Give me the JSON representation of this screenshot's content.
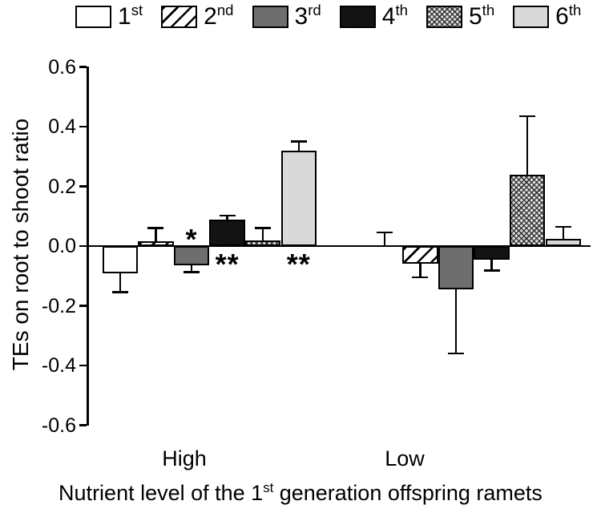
{
  "legend": {
    "items": [
      {
        "label": "1",
        "sup": "st",
        "pattern": "white"
      },
      {
        "label": "2",
        "sup": "nd",
        "pattern": "diagonal-hatch"
      },
      {
        "label": "3",
        "sup": "rd",
        "pattern": "dark-gray"
      },
      {
        "label": "4",
        "sup": "th",
        "pattern": "black"
      },
      {
        "label": "5",
        "sup": "th",
        "pattern": "crosshatch"
      },
      {
        "label": "6",
        "sup": "th",
        "pattern": "light-gray"
      }
    ]
  },
  "chart_data": {
    "type": "bar",
    "ylabel": "TEs on root to shoot ratio",
    "xlabel_parts": {
      "prefix": "Nutrient level of the 1",
      "sup": "st",
      "suffix": " generation offspring ramets"
    },
    "groups": [
      "High",
      "Low"
    ],
    "ylim": [
      -0.6,
      0.6
    ],
    "yticks": [
      "0.6",
      "0.4",
      "0.2",
      "0.0",
      "-0.2",
      "-0.4",
      "-0.6"
    ],
    "grid": false,
    "legend_position": "top",
    "error_bars": "one-sided outward whiskers",
    "series": [
      {
        "name": "1st",
        "pattern": "white",
        "values": [
          -0.09,
          0.0
        ],
        "errors": [
          0.065,
          0.045
        ],
        "sig": [
          "",
          ""
        ]
      },
      {
        "name": "2nd",
        "pattern": "diagonal-hatch",
        "values": [
          0.015,
          -0.06
        ],
        "errors": [
          0.045,
          0.045
        ],
        "sig": [
          "",
          ""
        ]
      },
      {
        "name": "3rd",
        "pattern": "dark-gray",
        "values": [
          -0.065,
          -0.145
        ],
        "errors": [
          0.022,
          0.215
        ],
        "sig": [
          "*",
          ""
        ]
      },
      {
        "name": "4th",
        "pattern": "black",
        "values": [
          0.088,
          -0.045
        ],
        "errors": [
          0.014,
          0.037
        ],
        "sig": [
          "**",
          ""
        ]
      },
      {
        "name": "5th",
        "pattern": "crosshatch",
        "values": [
          0.018,
          0.24
        ],
        "errors": [
          0.042,
          0.195
        ],
        "sig": [
          "",
          ""
        ]
      },
      {
        "name": "6th",
        "pattern": "light-gray",
        "values": [
          0.32,
          0.025
        ],
        "errors": [
          0.03,
          0.04
        ],
        "sig": [
          "**",
          ""
        ]
      }
    ]
  },
  "colors": {
    "white": "#ffffff",
    "diagonal-hatch": "#ffffff",
    "dark-gray": "#6e6e6e",
    "black": "#0d0d0d",
    "crosshatch": "#e0e0e0",
    "light-gray": "#d9d9d9",
    "axis": "#000000"
  }
}
